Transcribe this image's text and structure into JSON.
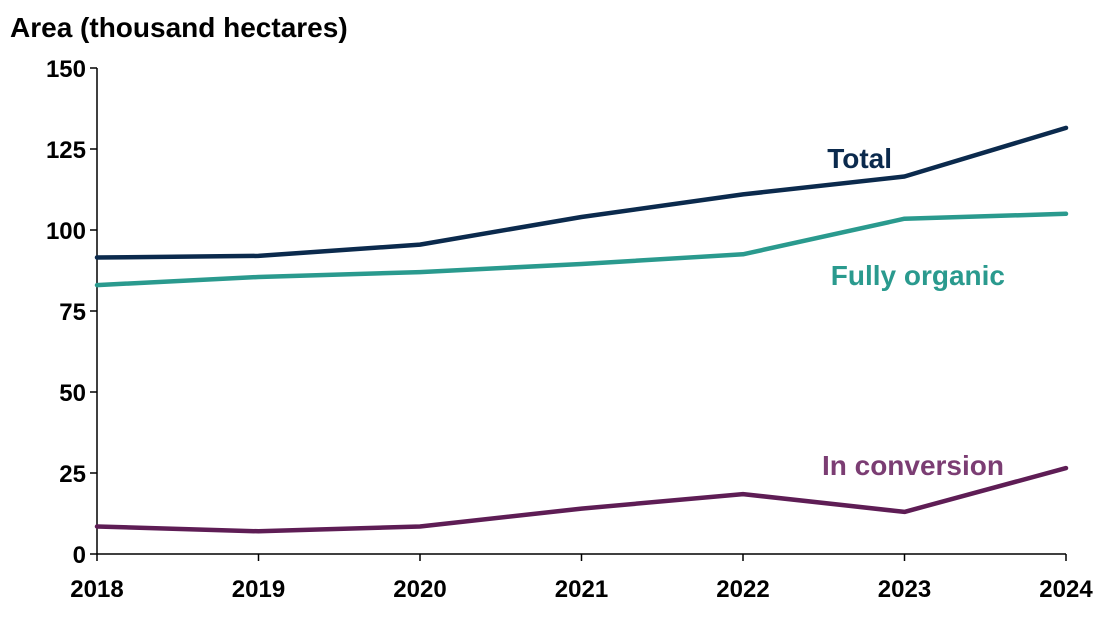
{
  "chart_data": {
    "type": "line",
    "ylabel": "Area (thousand hectares)",
    "xlabel": "",
    "x": [
      "2018",
      "2019",
      "2020",
      "2021",
      "2022",
      "2023",
      "2024"
    ],
    "ylim": [
      0,
      150
    ],
    "yticks": [
      "0",
      "25",
      "50",
      "75",
      "100",
      "125",
      "150"
    ],
    "grid": false,
    "legend": "inline labels",
    "series": [
      {
        "name": "Total",
        "color": "#0b2a4d",
        "values": [
          91.5,
          92,
          95.5,
          104,
          111,
          116.5,
          131.5
        ]
      },
      {
        "name": "Fully organic",
        "color": "#2a9a8e",
        "values": [
          83,
          85.5,
          87,
          89.5,
          92.5,
          103.5,
          105
        ]
      },
      {
        "name": "In conversion",
        "color": "#5e1d55",
        "label_color": "#7b3d73",
        "values": [
          8.5,
          7,
          8.5,
          14,
          18.5,
          13,
          26.5
        ]
      }
    ]
  }
}
